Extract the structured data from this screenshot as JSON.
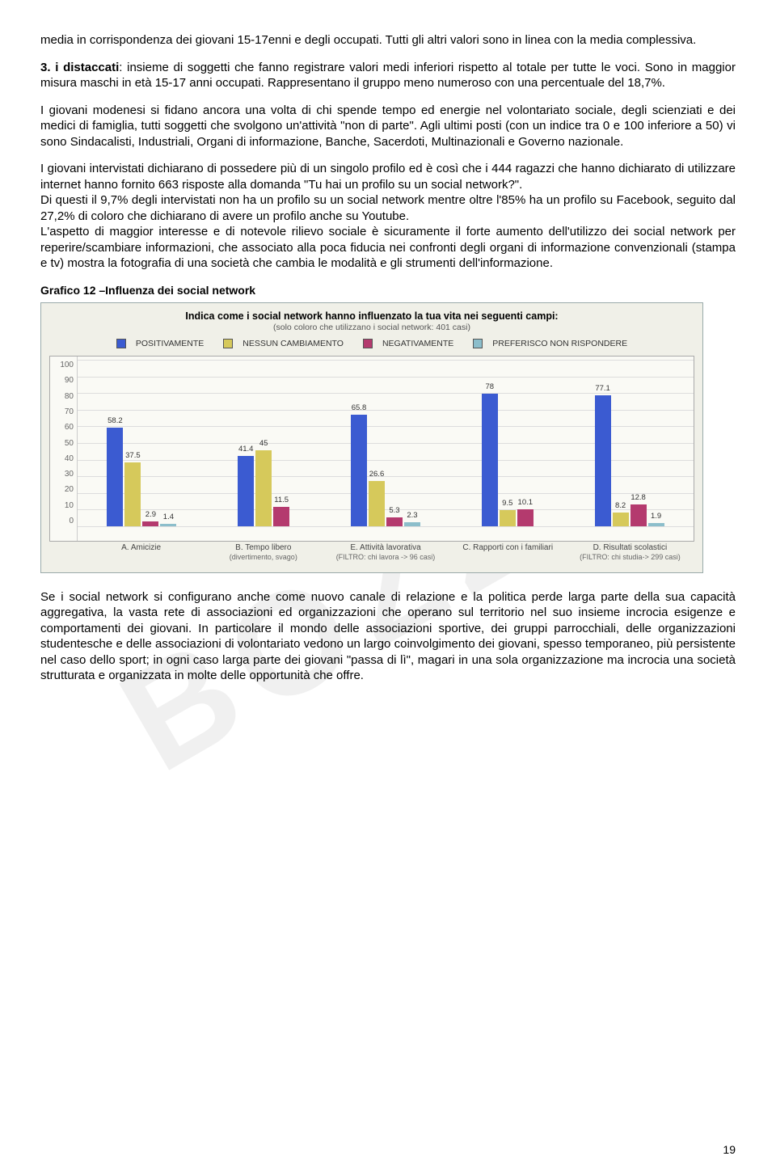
{
  "watermark": "BOZZA",
  "para1": "media in corrispondenza dei giovani 15-17enni e degli occupati. Tutti gli altri valori sono in linea con la media complessiva.",
  "para2_lead": "3. i distaccati",
  "para2_rest": ": insieme di soggetti che fanno registrare valori medi inferiori rispetto al totale per tutte le voci. Sono in maggior misura maschi in età 15-17 anni occupati. Rappresentano il gruppo meno numeroso con una percentuale del 18,7%.",
  "para3": "I giovani modenesi si fidano ancora una volta di chi spende tempo ed energie nel volontariato sociale, degli scienziati e dei medici di famiglia, tutti soggetti che svolgono un'attività \"non di parte\". Agli ultimi posti (con un indice tra 0 e 100 inferiore a 50) vi sono Sindacalisti, Industriali, Organi di informazione, Banche, Sacerdoti, Multinazionali e Governo nazionale.",
  "para4": "I giovani intervistati dichiarano di possedere più di un singolo profilo ed è così che i 444 ragazzi che hanno dichiarato di utilizzare internet hanno fornito 663 risposte alla domanda \"Tu hai un profilo su un social network?\".",
  "para5": "Di questi il 9,7% degli intervistati non ha un profilo su un social network mentre oltre l'85% ha un profilo su Facebook, seguito dal 27,2% di coloro che dichiarano di avere un profilo anche su Youtube.",
  "para6": "L'aspetto di maggior interesse e di notevole rilievo sociale è sicuramente il forte aumento dell'utilizzo dei social network per reperire/scambiare informazioni, che associato alla poca fiducia nei confronti degli organi di informazione convenzionali (stampa e tv) mostra la fotografia di una società che cambia le modalità e gli strumenti dell'informazione.",
  "caption": "Grafico 12 –Influenza dei social network",
  "chart": {
    "title": "Indica come i social network hanno influenzato la tua vita nei seguenti campi:",
    "subtitle": "(solo coloro che utilizzano i social network: 401 casi)",
    "legend": [
      "POSITIVAMENTE",
      "NESSUN CAMBIAMENTO",
      "NEGATIVAMENTE",
      "PREFERISCO NON RISPONDERE"
    ],
    "colors": [
      "#3b5bd1",
      "#d6c95b",
      "#b43a6e",
      "#8cbecb"
    ],
    "border": "#9aa",
    "bg": "#f0f0e8",
    "ymax": 100,
    "yticks": [
      100,
      90,
      80,
      70,
      60,
      50,
      40,
      30,
      20,
      10,
      0
    ],
    "groups": [
      {
        "label": "A. Amicizie",
        "sub": "",
        "values": [
          58.2,
          37.5,
          2.9,
          1.4
        ]
      },
      {
        "label": "B. Tempo libero",
        "sub": "(divertimento, svago)",
        "values": [
          41.4,
          45,
          11.5,
          null
        ]
      },
      {
        "label": "E. Attività lavorativa",
        "sub": "(FILTRO: chi lavora -> 96 casi)",
        "values": [
          65.8,
          26.6,
          5.3,
          2.3
        ]
      },
      {
        "label": "C. Rapporti con i familiari",
        "sub": "",
        "values": [
          78,
          9.5,
          10.1,
          null
        ]
      },
      {
        "label": "D. Risultati scolastici",
        "sub": "(FILTRO: chi studia-> 299 casi)",
        "values": [
          77.1,
          8.2,
          12.8,
          1.9
        ]
      }
    ]
  },
  "para7": "Se i social network si configurano anche come nuovo canale di relazione e la politica perde larga parte della sua capacità aggregativa, la vasta rete di associazioni ed organizzazioni che operano sul territorio nel suo insieme incrocia esigenze e comportamenti dei giovani. In particolare il mondo delle associazioni sportive, dei gruppi parrocchiali, delle organizzazioni studentesche e delle associazioni di volontariato vedono un largo coinvolgimento dei giovani, spesso temporaneo, più persistente nel caso dello sport; in ogni caso larga parte dei giovani \"passa di lì\", magari in una sola organizzazione ma incrocia una società strutturata e organizzata in molte delle opportunità che offre.",
  "page": "19"
}
